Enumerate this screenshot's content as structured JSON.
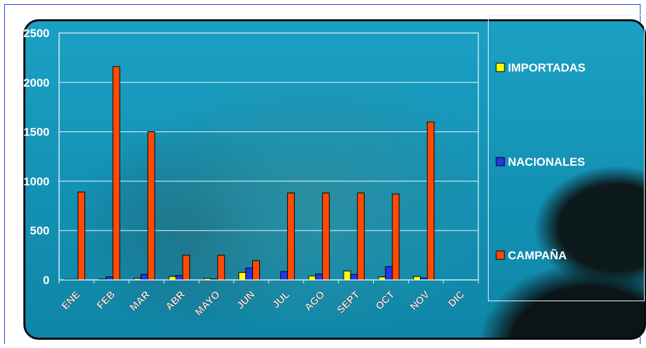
{
  "chart_data": {
    "type": "bar",
    "categories": [
      "ENE",
      "FEB",
      "MAR",
      "ABR",
      "MAYO",
      "JUN",
      "JUL",
      "AGO",
      "SEPT",
      "OCT",
      "NOV",
      "DIC"
    ],
    "series": [
      {
        "name": "IMPORTADAS",
        "color": "#ffff00",
        "values": [
          5,
          8,
          15,
          35,
          15,
          75,
          0,
          40,
          90,
          30,
          35,
          0
        ]
      },
      {
        "name": "NACIONALES",
        "color": "#2536e6",
        "values": [
          5,
          30,
          55,
          45,
          10,
          120,
          85,
          60,
          55,
          135,
          20,
          0
        ]
      },
      {
        "name": "CAMPAÑA",
        "color": "#ff4a05",
        "values": [
          890,
          2160,
          1500,
          250,
          250,
          195,
          880,
          880,
          880,
          870,
          1600,
          0
        ]
      }
    ],
    "yticks": [
      0,
      500,
      1000,
      1500,
      2000,
      2500
    ],
    "ylim": [
      0,
      2500
    ],
    "grid": true,
    "legend": "right",
    "title": "",
    "xlabel": "",
    "ylabel": ""
  }
}
